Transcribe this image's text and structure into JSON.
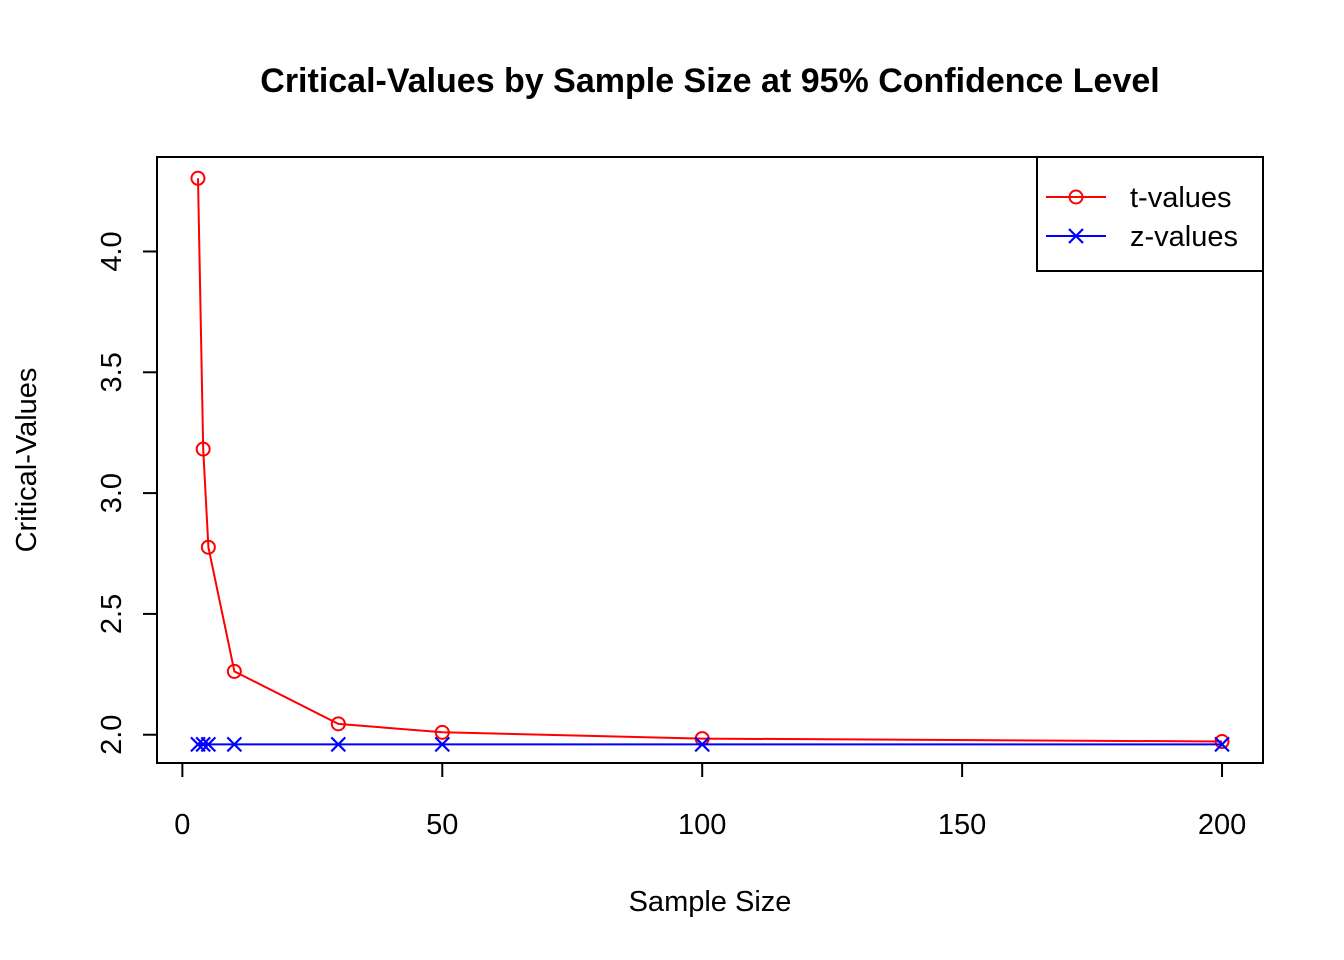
{
  "chart_data": {
    "type": "line",
    "title": "Critical-Values by Sample Size at 95% Confidence Level",
    "xlabel": "Sample Size",
    "ylabel": "Critical-Values",
    "xlim": [
      -4.88,
      207.88
    ],
    "ylim": [
      1.883,
      4.391
    ],
    "x_ticks": [
      0,
      50,
      100,
      150,
      200
    ],
    "x_tick_labels": [
      "0",
      "50",
      "100",
      "150",
      "200"
    ],
    "y_ticks": [
      2.0,
      2.5,
      3.0,
      3.5,
      4.0
    ],
    "y_tick_labels": [
      "2.0",
      "2.5",
      "3.0",
      "3.5",
      "4.0"
    ],
    "grid": false,
    "legend_position": "top-right",
    "series": [
      {
        "name": "t-values",
        "color": "#ff0000",
        "marker": "circle",
        "x": [
          3,
          4,
          5,
          10,
          30,
          50,
          100,
          200
        ],
        "values": [
          4.303,
          3.182,
          2.776,
          2.262,
          2.045,
          2.01,
          1.984,
          1.972
        ]
      },
      {
        "name": "z-values",
        "color": "#0000ff",
        "marker": "cross",
        "x": [
          3,
          4,
          5,
          10,
          30,
          50,
          100,
          200
        ],
        "values": [
          1.96,
          1.96,
          1.96,
          1.96,
          1.96,
          1.96,
          1.96,
          1.96
        ]
      }
    ]
  }
}
